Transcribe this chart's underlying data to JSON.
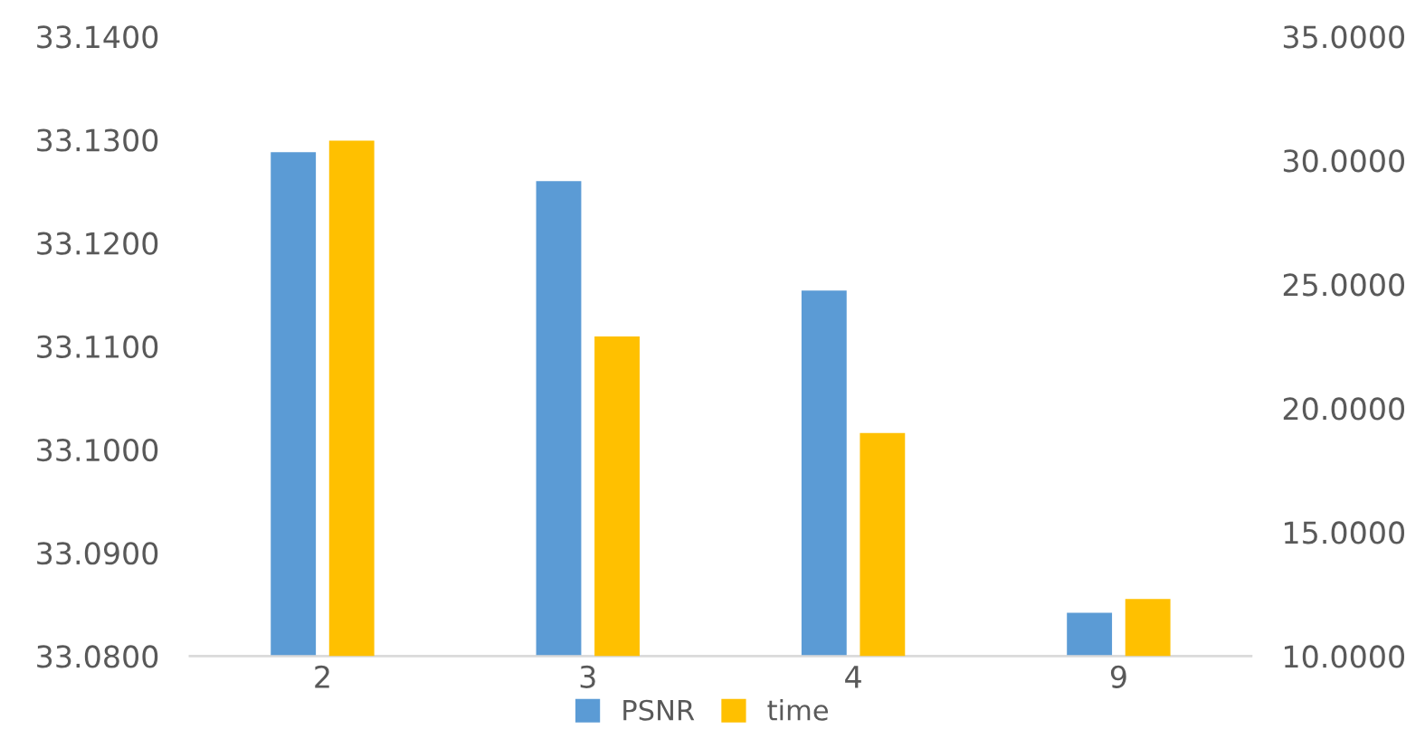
{
  "chart_data": {
    "type": "bar",
    "categories": [
      "2",
      "3",
      "4",
      "9"
    ],
    "series": [
      {
        "name": "PSNR",
        "color": "#5b9bd5",
        "values": [
          33.1288,
          33.126,
          33.1154,
          33.0842
        ]
      },
      {
        "name": "time",
        "color": "#ffc000",
        "axis": "y2",
        "values": [
          30.8,
          22.9,
          19.0,
          12.3
        ]
      }
    ],
    "ylim": [
      33.08,
      33.14
    ],
    "yticks": [
      {
        "value": 33.08,
        "label": "33.0800"
      },
      {
        "value": 33.09,
        "label": "33.0900"
      },
      {
        "value": 33.1,
        "label": "33.1000"
      },
      {
        "value": 33.11,
        "label": "33.1100"
      },
      {
        "value": 33.12,
        "label": "33.1200"
      },
      {
        "value": 33.13,
        "label": "33.1300"
      },
      {
        "value": 33.14,
        "label": "33.1400"
      }
    ],
    "y2lim": [
      10,
      35
    ],
    "y2ticks": [
      {
        "value": 10,
        "label": "10.0000"
      },
      {
        "value": 15,
        "label": "15.0000"
      },
      {
        "value": 20,
        "label": "20.0000"
      },
      {
        "value": 25,
        "label": "25.0000"
      },
      {
        "value": 30,
        "label": "30.0000"
      },
      {
        "value": 35,
        "label": "35.0000"
      }
    ],
    "grid": false,
    "legend": "bottom"
  }
}
